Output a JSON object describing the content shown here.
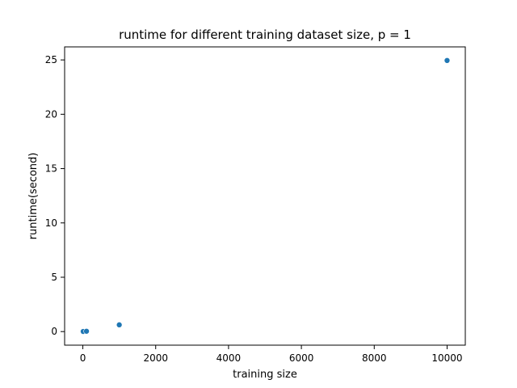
{
  "chart_data": {
    "type": "scatter",
    "title": "runtime for different training dataset size, p = 1",
    "xlabel": "training size",
    "ylabel": "runtime(second)",
    "x": [
      10,
      100,
      1000,
      10000
    ],
    "y": [
      0.01,
      0.03,
      0.62,
      24.95
    ],
    "xlim": [
      -500,
      10500
    ],
    "ylim": [
      -1.25,
      26.2
    ],
    "xticks": [
      0,
      2000,
      4000,
      6000,
      8000,
      10000
    ],
    "xtick_labels": [
      "0",
      "2000",
      "4000",
      "6000",
      "8000",
      "10000"
    ],
    "yticks": [
      0,
      5,
      10,
      15,
      20,
      25
    ],
    "ytick_labels": [
      "0",
      "5",
      "10",
      "15",
      "20",
      "25"
    ],
    "grid": false,
    "legend": "none",
    "point_color": "#1f77b4"
  }
}
